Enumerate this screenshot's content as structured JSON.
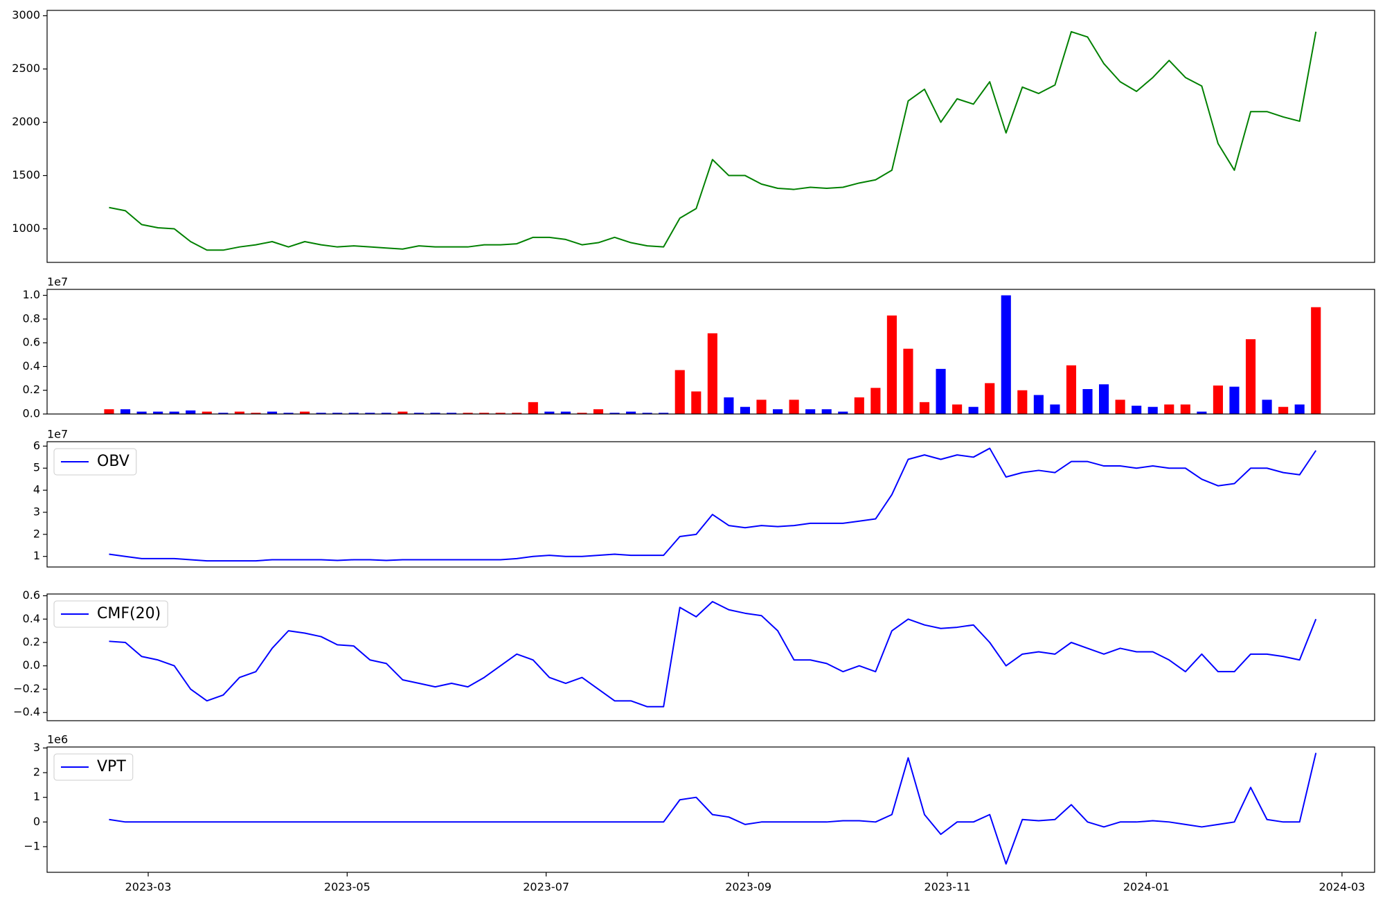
{
  "chart_data": [
    {
      "type": "line",
      "color": "#008000",
      "x": [
        "2023-02-17",
        "2023-02-22",
        "2023-02-27",
        "2023-03-04",
        "2023-03-09",
        "2023-03-14",
        "2023-03-19",
        "2023-03-24",
        "2023-03-29",
        "2023-04-03",
        "2023-04-08",
        "2023-04-13",
        "2023-04-18",
        "2023-04-23",
        "2023-04-28",
        "2023-05-03",
        "2023-05-08",
        "2023-05-13",
        "2023-05-18",
        "2023-05-23",
        "2023-05-28",
        "2023-06-02",
        "2023-06-07",
        "2023-06-12",
        "2023-06-17",
        "2023-06-22",
        "2023-06-27",
        "2023-07-02",
        "2023-07-07",
        "2023-07-12",
        "2023-07-17",
        "2023-07-22",
        "2023-07-27",
        "2023-08-01",
        "2023-08-06",
        "2023-08-11",
        "2023-08-16",
        "2023-08-21",
        "2023-08-26",
        "2023-08-31",
        "2023-09-05",
        "2023-09-10",
        "2023-09-15",
        "2023-09-20",
        "2023-09-25",
        "2023-09-30",
        "2023-10-05",
        "2023-10-10",
        "2023-10-15",
        "2023-10-20",
        "2023-10-25",
        "2023-10-30",
        "2023-11-04",
        "2023-11-09",
        "2023-11-14",
        "2023-11-19",
        "2023-11-24",
        "2023-11-29",
        "2023-12-04",
        "2023-12-09",
        "2023-12-14",
        "2023-12-19",
        "2023-12-24",
        "2023-12-29",
        "2024-01-03",
        "2024-01-08",
        "2024-01-13",
        "2024-01-18",
        "2024-01-23",
        "2024-01-28",
        "2024-02-02",
        "2024-02-07",
        "2024-02-12",
        "2024-02-17",
        "2024-02-22"
      ],
      "values": [
        1200,
        1170,
        1040,
        1010,
        1000,
        880,
        800,
        800,
        830,
        850,
        880,
        830,
        880,
        850,
        830,
        840,
        830,
        820,
        810,
        840,
        830,
        830,
        830,
        850,
        850,
        860,
        920,
        920,
        900,
        850,
        870,
        920,
        870,
        840,
        830,
        1100,
        1190,
        1650,
        1500,
        1500,
        1420,
        1380,
        1370,
        1390,
        1380,
        1390,
        1430,
        1460,
        1550,
        2200,
        2310,
        2000,
        2220,
        2170,
        2380,
        1900,
        2330,
        2270,
        2350,
        2850,
        2800,
        2550,
        2380,
        2290,
        2420,
        2580,
        2420,
        2340,
        1800,
        1550,
        2100,
        2100,
        2050,
        2010,
        2850
      ],
      "xlim": [
        "2023-01-29",
        "2024-03-11"
      ],
      "ylim": [
        685,
        3050
      ],
      "yticks": [
        1000,
        1500,
        2000,
        2500,
        3000
      ]
    },
    {
      "type": "bar",
      "offset_label": "1e7",
      "x": [
        "2023-02-17",
        "2023-02-22",
        "2023-02-27",
        "2023-03-04",
        "2023-03-09",
        "2023-03-14",
        "2023-03-19",
        "2023-03-24",
        "2023-03-29",
        "2023-04-03",
        "2023-04-08",
        "2023-04-13",
        "2023-04-18",
        "2023-04-23",
        "2023-04-28",
        "2023-05-03",
        "2023-05-08",
        "2023-05-13",
        "2023-05-18",
        "2023-05-23",
        "2023-05-28",
        "2023-06-02",
        "2023-06-07",
        "2023-06-12",
        "2023-06-17",
        "2023-06-22",
        "2023-06-27",
        "2023-07-02",
        "2023-07-07",
        "2023-07-12",
        "2023-07-17",
        "2023-07-22",
        "2023-07-27",
        "2023-08-01",
        "2023-08-06",
        "2023-08-11",
        "2023-08-16",
        "2023-08-21",
        "2023-08-26",
        "2023-08-31",
        "2023-09-05",
        "2023-09-10",
        "2023-09-15",
        "2023-09-20",
        "2023-09-25",
        "2023-09-30",
        "2023-10-05",
        "2023-10-10",
        "2023-10-15",
        "2023-10-20",
        "2023-10-25",
        "2023-10-30",
        "2023-11-04",
        "2023-11-09",
        "2023-11-14",
        "2023-11-19",
        "2023-11-24",
        "2023-11-29",
        "2023-12-04",
        "2023-12-09",
        "2023-12-14",
        "2023-12-19",
        "2023-12-24",
        "2023-12-29",
        "2024-01-03",
        "2024-01-08",
        "2024-01-13",
        "2024-01-18",
        "2024-01-23",
        "2024-01-28",
        "2024-02-02",
        "2024-02-07",
        "2024-02-12",
        "2024-02-17",
        "2024-02-22"
      ],
      "values": [
        0.04,
        0.04,
        0.02,
        0.02,
        0.02,
        0.03,
        0.02,
        0.01,
        0.02,
        0.01,
        0.02,
        0.01,
        0.02,
        0.01,
        0.01,
        0.01,
        0.01,
        0.01,
        0.02,
        0.01,
        0.01,
        0.01,
        0.01,
        0.01,
        0.01,
        0.01,
        0.1,
        0.02,
        0.02,
        0.01,
        0.04,
        0.01,
        0.02,
        0.01,
        0.01,
        0.37,
        0.19,
        0.68,
        0.14,
        0.06,
        0.12,
        0.04,
        0.12,
        0.04,
        0.04,
        0.02,
        0.14,
        0.22,
        0.83,
        0.55,
        0.1,
        0.38,
        0.08,
        0.06,
        0.26,
        1.0,
        0.2,
        0.16,
        0.08,
        0.41,
        0.21,
        0.25,
        0.12,
        0.07,
        0.06,
        0.08,
        0.08,
        0.02,
        0.24,
        0.23,
        0.63,
        0.12,
        0.06,
        0.08,
        0.9
      ],
      "colors": [
        "red",
        "blue",
        "blue",
        "blue",
        "blue",
        "blue",
        "red",
        "blue",
        "red",
        "red",
        "blue",
        "blue",
        "red",
        "blue",
        "blue",
        "blue",
        "blue",
        "blue",
        "red",
        "blue",
        "blue",
        "blue",
        "red",
        "red",
        "red",
        "red",
        "red",
        "blue",
        "blue",
        "red",
        "red",
        "blue",
        "blue",
        "blue",
        "blue",
        "red",
        "red",
        "red",
        "blue",
        "blue",
        "red",
        "blue",
        "red",
        "blue",
        "blue",
        "blue",
        "red",
        "red",
        "red",
        "red",
        "red",
        "blue",
        "red",
        "blue",
        "red",
        "blue",
        "red",
        "blue",
        "blue",
        "red",
        "blue",
        "blue",
        "red",
        "blue",
        "blue",
        "red",
        "red",
        "blue",
        "red",
        "blue",
        "red",
        "blue",
        "red",
        "blue",
        "red"
      ],
      "xlim": [
        "2023-01-29",
        "2024-03-11"
      ],
      "ylim": [
        0,
        1.05
      ],
      "yticks": [
        {
          "value": 0,
          "label": "0.0"
        },
        0.2,
        0.4,
        0.6,
        0.8,
        {
          "value": 1,
          "label": "1.0"
        }
      ]
    },
    {
      "type": "line",
      "offset_label": "1e7",
      "legend": "upper left",
      "x": [
        "2023-02-17",
        "2023-02-22",
        "2023-02-27",
        "2023-03-04",
        "2023-03-09",
        "2023-03-14",
        "2023-03-19",
        "2023-03-24",
        "2023-03-29",
        "2023-04-03",
        "2023-04-08",
        "2023-04-13",
        "2023-04-18",
        "2023-04-23",
        "2023-04-28",
        "2023-05-03",
        "2023-05-08",
        "2023-05-13",
        "2023-05-18",
        "2023-05-23",
        "2023-05-28",
        "2023-06-02",
        "2023-06-07",
        "2023-06-12",
        "2023-06-17",
        "2023-06-22",
        "2023-06-27",
        "2023-07-02",
        "2023-07-07",
        "2023-07-12",
        "2023-07-17",
        "2023-07-22",
        "2023-07-27",
        "2023-08-01",
        "2023-08-06",
        "2023-08-11",
        "2023-08-16",
        "2023-08-21",
        "2023-08-26",
        "2023-08-31",
        "2023-09-05",
        "2023-09-10",
        "2023-09-15",
        "2023-09-20",
        "2023-09-25",
        "2023-09-30",
        "2023-10-05",
        "2023-10-10",
        "2023-10-15",
        "2023-10-20",
        "2023-10-25",
        "2023-10-30",
        "2023-11-04",
        "2023-11-09",
        "2023-11-14",
        "2023-11-19",
        "2023-11-24",
        "2023-11-29",
        "2023-12-04",
        "2023-12-09",
        "2023-12-14",
        "2023-12-19",
        "2023-12-24",
        "2023-12-29",
        "2024-01-03",
        "2024-01-08",
        "2024-01-13",
        "2024-01-18",
        "2024-01-23",
        "2024-01-28",
        "2024-02-02",
        "2024-02-07",
        "2024-02-12",
        "2024-02-17",
        "2024-02-22"
      ],
      "series": [
        {
          "name": "OBV",
          "color": "#0000ff",
          "values": [
            1.1,
            1.0,
            0.9,
            0.9,
            0.9,
            0.85,
            0.8,
            0.8,
            0.8,
            0.8,
            0.85,
            0.85,
            0.85,
            0.85,
            0.82,
            0.85,
            0.85,
            0.82,
            0.85,
            0.85,
            0.85,
            0.85,
            0.85,
            0.85,
            0.85,
            0.9,
            1.0,
            1.05,
            1.0,
            1.0,
            1.05,
            1.1,
            1.05,
            1.05,
            1.05,
            1.9,
            2.0,
            2.9,
            2.4,
            2.3,
            2.4,
            2.35,
            2.4,
            2.5,
            2.5,
            2.5,
            2.6,
            2.7,
            3.8,
            5.4,
            5.6,
            5.4,
            5.6,
            5.5,
            5.9,
            4.6,
            4.8,
            4.9,
            4.8,
            5.3,
            5.3,
            5.1,
            5.1,
            5.0,
            5.1,
            5.0,
            5.0,
            4.5,
            4.2,
            4.3,
            5.0,
            5.0,
            4.8,
            4.7,
            5.8
          ]
        }
      ],
      "xlim": [
        "2023-01-29",
        "2024-03-11"
      ],
      "ylim": [
        0.52,
        6.2
      ],
      "yticks": [
        1,
        2,
        3,
        4,
        5,
        6
      ]
    },
    {
      "type": "line",
      "legend": "upper left",
      "x": [
        "2023-02-17",
        "2023-02-22",
        "2023-02-27",
        "2023-03-04",
        "2023-03-09",
        "2023-03-14",
        "2023-03-19",
        "2023-03-24",
        "2023-03-29",
        "2023-04-03",
        "2023-04-08",
        "2023-04-13",
        "2023-04-18",
        "2023-04-23",
        "2023-04-28",
        "2023-05-03",
        "2023-05-08",
        "2023-05-13",
        "2023-05-18",
        "2023-05-23",
        "2023-05-28",
        "2023-06-02",
        "2023-06-07",
        "2023-06-12",
        "2023-06-17",
        "2023-06-22",
        "2023-06-27",
        "2023-07-02",
        "2023-07-07",
        "2023-07-12",
        "2023-07-17",
        "2023-07-22",
        "2023-07-27",
        "2023-08-01",
        "2023-08-06",
        "2023-08-11",
        "2023-08-16",
        "2023-08-21",
        "2023-08-26",
        "2023-08-31",
        "2023-09-05",
        "2023-09-10",
        "2023-09-15",
        "2023-09-20",
        "2023-09-25",
        "2023-09-30",
        "2023-10-05",
        "2023-10-10",
        "2023-10-15",
        "2023-10-20",
        "2023-10-25",
        "2023-10-30",
        "2023-11-04",
        "2023-11-09",
        "2023-11-14",
        "2023-11-19",
        "2023-11-24",
        "2023-11-29",
        "2023-12-04",
        "2023-12-09",
        "2023-12-14",
        "2023-12-19",
        "2023-12-24",
        "2023-12-29",
        "2024-01-03",
        "2024-01-08",
        "2024-01-13",
        "2024-01-18",
        "2024-01-23",
        "2024-01-28",
        "2024-02-02",
        "2024-02-07",
        "2024-02-12",
        "2024-02-17",
        "2024-02-22"
      ],
      "series": [
        {
          "name": "CMF(20)",
          "color": "#0000ff",
          "values": [
            0.21,
            0.2,
            0.08,
            0.05,
            0.0,
            -0.2,
            -0.3,
            -0.25,
            -0.1,
            -0.05,
            0.15,
            0.3,
            0.28,
            0.25,
            0.18,
            0.17,
            0.05,
            0.02,
            -0.12,
            -0.15,
            -0.18,
            -0.15,
            -0.18,
            -0.1,
            0.0,
            0.1,
            0.05,
            -0.1,
            -0.15,
            -0.1,
            -0.2,
            -0.3,
            -0.3,
            -0.35,
            -0.35,
            0.5,
            0.42,
            0.55,
            0.48,
            0.45,
            0.43,
            0.3,
            0.05,
            0.05,
            0.02,
            -0.05,
            0.0,
            -0.05,
            0.3,
            0.4,
            0.35,
            0.32,
            0.33,
            0.35,
            0.2,
            0.0,
            0.1,
            0.12,
            0.1,
            0.2,
            0.15,
            0.1,
            0.15,
            0.12,
            0.12,
            0.05,
            -0.05,
            0.1,
            -0.05,
            -0.05,
            0.1,
            0.1,
            0.08,
            0.05,
            0.4
          ]
        }
      ],
      "xlim": [
        "2023-01-29",
        "2024-03-11"
      ],
      "ylim": [
        -0.47,
        0.615
      ],
      "yticks": [
        {
          "value": -0.4,
          "label": "−0.4"
        },
        {
          "value": -0.2,
          "label": "−0.2"
        },
        {
          "value": 0,
          "label": "0.0"
        },
        0.2,
        0.4,
        0.6
      ]
    },
    {
      "type": "line",
      "offset_label": "1e6",
      "legend": "upper left",
      "x": [
        "2023-02-17",
        "2023-02-22",
        "2023-02-27",
        "2023-03-04",
        "2023-03-09",
        "2023-03-14",
        "2023-03-19",
        "2023-03-24",
        "2023-03-29",
        "2023-04-03",
        "2023-04-08",
        "2023-04-13",
        "2023-04-18",
        "2023-04-23",
        "2023-04-28",
        "2023-05-03",
        "2023-05-08",
        "2023-05-13",
        "2023-05-18",
        "2023-05-23",
        "2023-05-28",
        "2023-06-02",
        "2023-06-07",
        "2023-06-12",
        "2023-06-17",
        "2023-06-22",
        "2023-06-27",
        "2023-07-02",
        "2023-07-07",
        "2023-07-12",
        "2023-07-17",
        "2023-07-22",
        "2023-07-27",
        "2023-08-01",
        "2023-08-06",
        "2023-08-11",
        "2023-08-16",
        "2023-08-21",
        "2023-08-26",
        "2023-08-31",
        "2023-09-05",
        "2023-09-10",
        "2023-09-15",
        "2023-09-20",
        "2023-09-25",
        "2023-09-30",
        "2023-10-05",
        "2023-10-10",
        "2023-10-15",
        "2023-10-20",
        "2023-10-25",
        "2023-10-30",
        "2023-11-04",
        "2023-11-09",
        "2023-11-14",
        "2023-11-19",
        "2023-11-24",
        "2023-11-29",
        "2023-12-04",
        "2023-12-09",
        "2023-12-14",
        "2023-12-19",
        "2023-12-24",
        "2023-12-29",
        "2024-01-03",
        "2024-01-08",
        "2024-01-13",
        "2024-01-18",
        "2024-01-23",
        "2024-01-28",
        "2024-02-02",
        "2024-02-07",
        "2024-02-12",
        "2024-02-17",
        "2024-02-22"
      ],
      "series": [
        {
          "name": "VPT",
          "color": "#0000ff",
          "values": [
            0.1,
            0,
            0,
            0,
            0,
            0,
            0,
            0,
            0,
            0,
            0,
            0,
            0,
            0,
            0,
            0,
            0,
            0,
            0,
            0,
            0,
            0,
            0,
            0,
            0,
            0,
            0,
            0,
            0,
            0,
            0,
            0,
            0,
            0,
            0,
            0.9,
            1.0,
            0.3,
            0.2,
            -0.1,
            0,
            0,
            0,
            0,
            0,
            0.05,
            0.05,
            0,
            0.3,
            2.6,
            0.3,
            -0.5,
            0,
            0,
            0.3,
            -1.7,
            0.1,
            0.05,
            0.1,
            0.7,
            0,
            -0.2,
            0,
            0,
            0.05,
            0,
            -0.1,
            -0.2,
            -0.1,
            0,
            1.4,
            0.1,
            0,
            0,
            2.8
          ]
        }
      ],
      "xlim": [
        "2023-01-29",
        "2024-03-11"
      ],
      "ylim": [
        -2.04,
        3.04
      ],
      "yticks": [
        {
          "value": -1,
          "label": "−1"
        },
        0,
        1,
        2,
        3
      ],
      "xticks": [
        "2023-03",
        "2023-05",
        "2023-07",
        "2023-09",
        "2023-11",
        "2024-01",
        "2024-03"
      ]
    }
  ]
}
